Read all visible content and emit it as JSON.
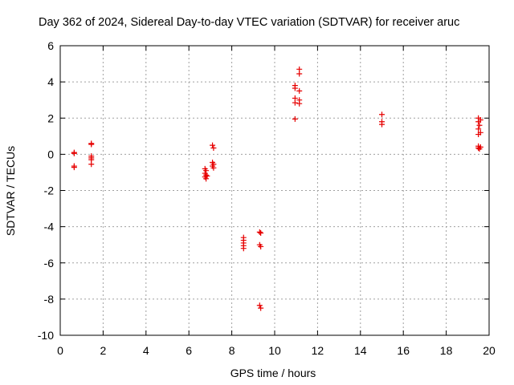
{
  "chart_data": {
    "type": "scatter",
    "title": "Day 362 of 2024, Sidereal Day-to-day VTEC variation (SDTVAR) for receiver aruc",
    "xlabel": "GPS time / hours",
    "ylabel": "SDTVAR / TECUs",
    "xlim": [
      0,
      20
    ],
    "ylim": [
      -10,
      6
    ],
    "xticks": [
      0,
      2,
      4,
      6,
      8,
      10,
      12,
      14,
      16,
      18,
      20
    ],
    "yticks": [
      -10,
      -8,
      -6,
      -4,
      -2,
      0,
      2,
      4,
      6
    ],
    "grid": true,
    "marker": "+",
    "color": "#e60000",
    "series": [
      {
        "name": "SDTVAR",
        "points": [
          [
            0.65,
            0.1
          ],
          [
            0.65,
            0.05
          ],
          [
            0.65,
            -0.65
          ],
          [
            0.65,
            -0.72
          ],
          [
            1.45,
            0.6
          ],
          [
            1.45,
            0.55
          ],
          [
            1.45,
            -0.1
          ],
          [
            1.45,
            -0.2
          ],
          [
            1.45,
            -0.3
          ],
          [
            1.45,
            -0.55
          ],
          [
            6.75,
            -0.8
          ],
          [
            6.8,
            -0.9
          ],
          [
            6.75,
            -1.05
          ],
          [
            6.8,
            -1.15
          ],
          [
            6.75,
            -1.25
          ],
          [
            6.8,
            -1.35
          ],
          [
            6.85,
            -1.2
          ],
          [
            7.1,
            0.5
          ],
          [
            7.15,
            0.35
          ],
          [
            7.1,
            -0.45
          ],
          [
            7.15,
            -0.55
          ],
          [
            7.1,
            -0.65
          ],
          [
            7.15,
            -0.75
          ],
          [
            8.55,
            -4.6
          ],
          [
            8.55,
            -4.75
          ],
          [
            8.55,
            -4.9
          ],
          [
            8.55,
            -5.05
          ],
          [
            8.55,
            -5.2
          ],
          [
            9.3,
            -4.3
          ],
          [
            9.35,
            -4.35
          ],
          [
            9.3,
            -5.0
          ],
          [
            9.35,
            -5.1
          ],
          [
            9.3,
            -8.35
          ],
          [
            9.35,
            -8.5
          ],
          [
            10.95,
            3.8
          ],
          [
            10.95,
            3.65
          ],
          [
            10.95,
            3.1
          ],
          [
            10.95,
            2.85
          ],
          [
            10.95,
            1.95
          ],
          [
            11.15,
            4.7
          ],
          [
            11.15,
            4.45
          ],
          [
            11.15,
            3.5
          ],
          [
            11.15,
            3.0
          ],
          [
            11.15,
            2.8
          ],
          [
            15.0,
            2.2
          ],
          [
            15.0,
            1.8
          ],
          [
            15.0,
            1.65
          ],
          [
            19.5,
            2.0
          ],
          [
            19.6,
            1.9
          ],
          [
            19.5,
            1.8
          ],
          [
            19.55,
            1.6
          ],
          [
            19.5,
            1.4
          ],
          [
            19.6,
            1.2
          ],
          [
            19.5,
            1.1
          ],
          [
            19.5,
            0.45
          ],
          [
            19.6,
            0.4
          ],
          [
            19.5,
            0.35
          ],
          [
            19.55,
            0.3
          ]
        ]
      }
    ]
  }
}
